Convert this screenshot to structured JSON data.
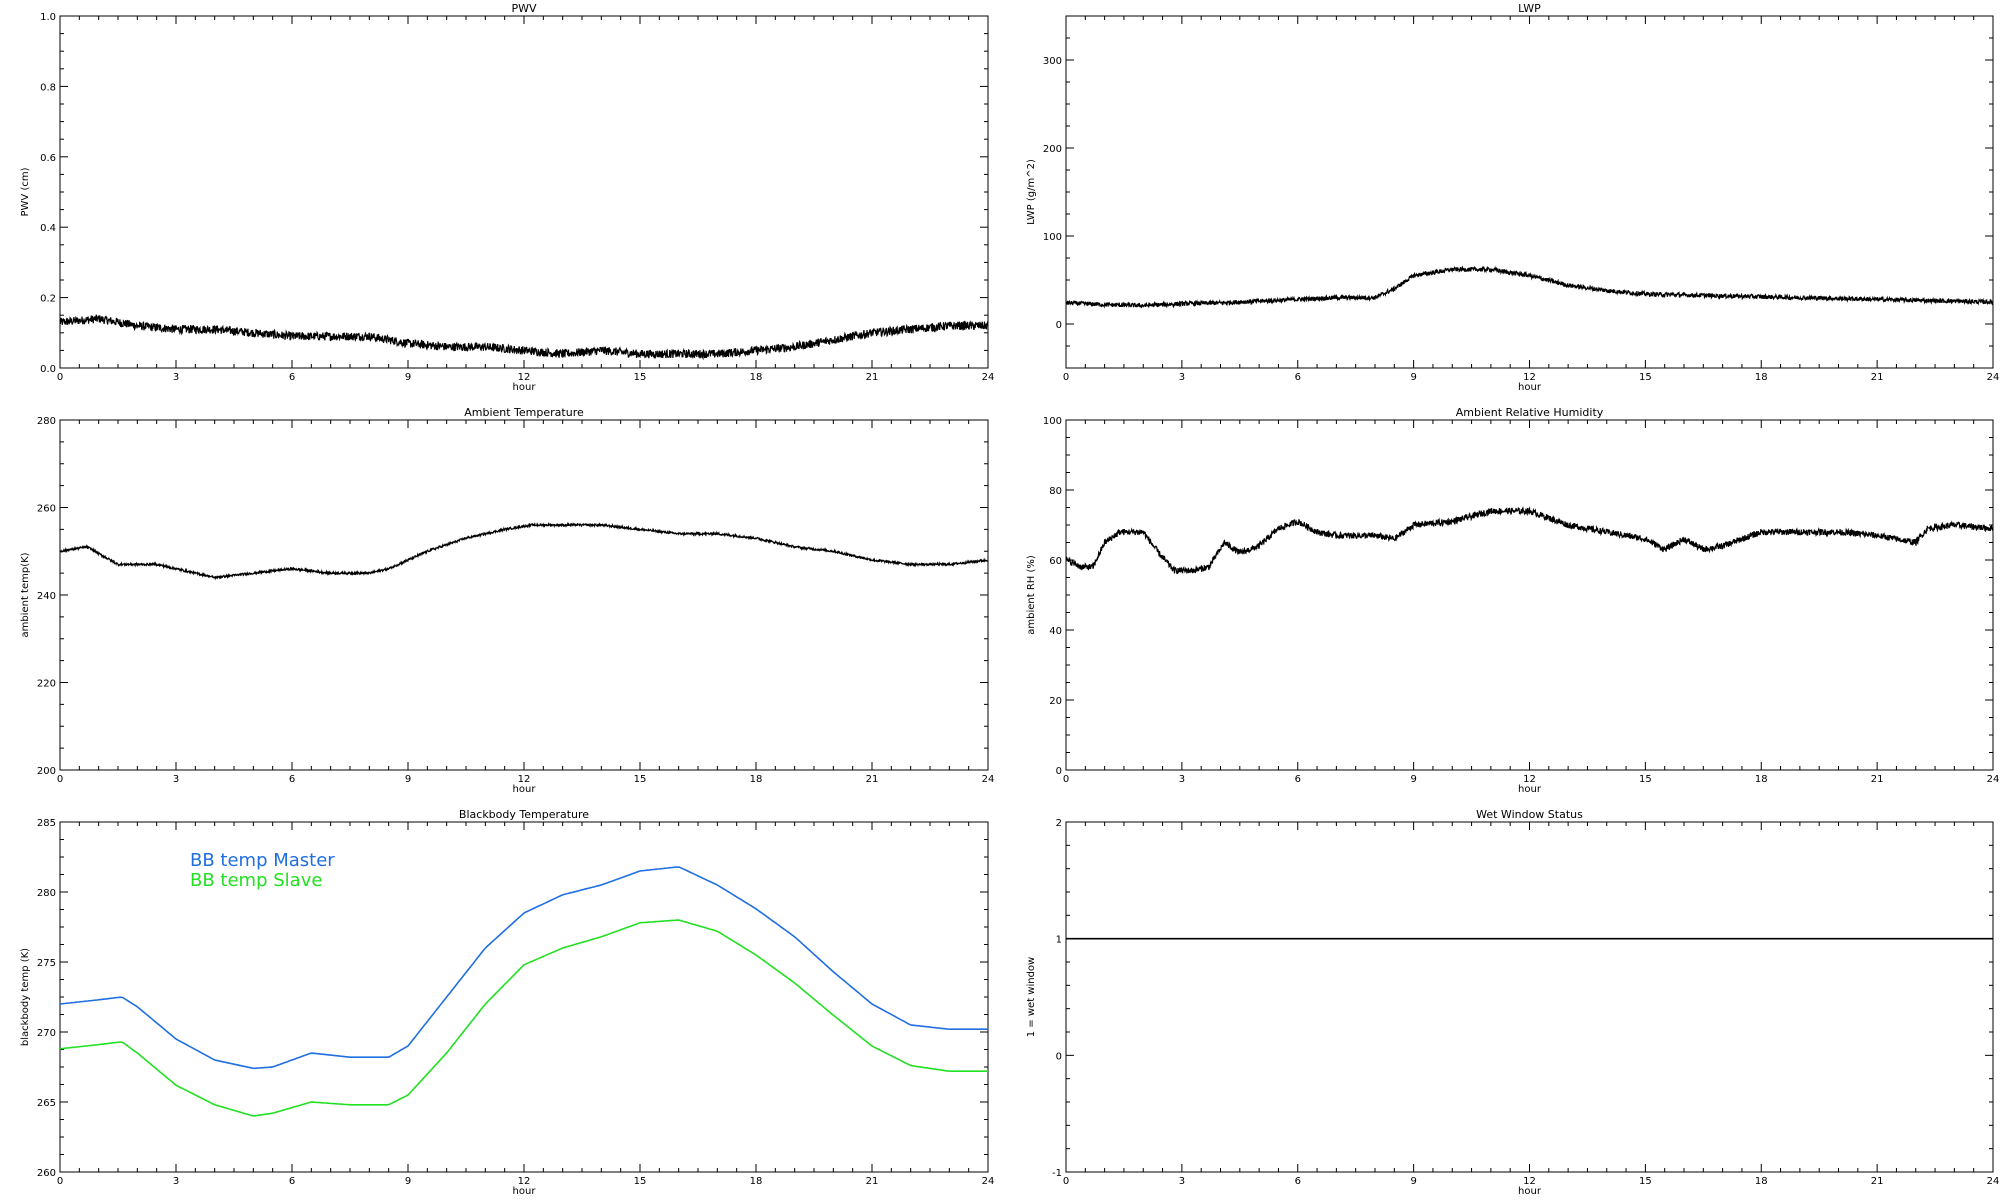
{
  "chart_data": [
    {
      "type": "line",
      "title": "PWV",
      "xlabel": "hour",
      "ylabel": "PWV (cm)",
      "xlim": [
        0,
        24
      ],
      "ylim": [
        0,
        1.0
      ],
      "xticks": [
        "0",
        "3",
        "6",
        "9",
        "12",
        "15",
        "18",
        "21",
        "24"
      ],
      "yticks": [
        "0.0",
        "0.2",
        "0.4",
        "0.6",
        "0.8",
        "1.0"
      ],
      "noise": 0.012,
      "series": [
        {
          "color": "#000000",
          "x": [
            0,
            1,
            2,
            3,
            4,
            5,
            6,
            7,
            8,
            9,
            10,
            11,
            12,
            13,
            14,
            15,
            16,
            17,
            18,
            19,
            20,
            21,
            22,
            23,
            24
          ],
          "y": [
            0.13,
            0.14,
            0.12,
            0.11,
            0.11,
            0.1,
            0.09,
            0.09,
            0.09,
            0.07,
            0.06,
            0.06,
            0.05,
            0.04,
            0.05,
            0.04,
            0.04,
            0.04,
            0.05,
            0.06,
            0.08,
            0.1,
            0.11,
            0.12,
            0.12
          ]
        }
      ]
    },
    {
      "type": "line",
      "title": "LWP",
      "xlabel": "hour",
      "ylabel": "LWP (g/m^2)",
      "xlim": [
        0,
        24
      ],
      "ylim": [
        -50,
        350
      ],
      "xticks": [
        "0",
        "3",
        "6",
        "9",
        "12",
        "15",
        "18",
        "21",
        "24"
      ],
      "yticks": [
        "0",
        "100",
        "200",
        "300"
      ],
      "noise": 2.5,
      "series": [
        {
          "color": "#000000",
          "x": [
            0,
            1,
            2,
            3,
            4,
            5,
            6,
            7,
            8,
            8.5,
            9,
            10,
            11,
            12,
            13,
            14,
            15,
            16,
            17,
            18,
            19,
            20,
            21,
            22,
            23,
            24
          ],
          "y": [
            24,
            22,
            21,
            23,
            24,
            26,
            28,
            30,
            30,
            40,
            55,
            62,
            62,
            55,
            44,
            38,
            34,
            33,
            32,
            31,
            30,
            29,
            28,
            27,
            26,
            25
          ]
        }
      ]
    },
    {
      "type": "line",
      "title": "Ambient Temperature",
      "xlabel": "hour",
      "ylabel": "ambient temp(K)",
      "xlim": [
        0,
        24
      ],
      "ylim": [
        200,
        280
      ],
      "xticks": [
        "0",
        "3",
        "6",
        "9",
        "12",
        "15",
        "18",
        "21",
        "24"
      ],
      "yticks": [
        "200",
        "220",
        "240",
        "260",
        "280"
      ],
      "noise": 0.25,
      "series": [
        {
          "color": "#000000",
          "x": [
            0,
            0.7,
            1.5,
            2.5,
            3.5,
            4,
            5,
            6,
            7,
            8,
            8.5,
            9.5,
            10.5,
            11.5,
            12.2,
            13,
            14,
            15,
            16,
            17,
            18,
            19,
            20,
            21,
            22,
            23,
            24
          ],
          "y": [
            250,
            251,
            247,
            247,
            245,
            244,
            245,
            246,
            245,
            245,
            246,
            250,
            253,
            255,
            256,
            256,
            256,
            255,
            254,
            254,
            253,
            251,
            250,
            248,
            247,
            247,
            248
          ]
        }
      ]
    },
    {
      "type": "line",
      "title": "Ambient Relative Humidity",
      "xlabel": "hour",
      "ylabel": "ambient RH (%)",
      "xlim": [
        0,
        24
      ],
      "ylim": [
        0,
        100
      ],
      "xticks": [
        "0",
        "3",
        "6",
        "9",
        "12",
        "15",
        "18",
        "21",
        "24"
      ],
      "yticks": [
        "0",
        "20",
        "40",
        "60",
        "80",
        "100"
      ],
      "noise": 0.9,
      "series": [
        {
          "color": "#000000",
          "x": [
            0,
            0.4,
            0.7,
            1,
            1.4,
            2,
            2.4,
            2.8,
            3.3,
            3.7,
            4.1,
            4.5,
            5,
            5.5,
            6,
            6.5,
            7,
            8,
            8.5,
            9,
            10,
            11,
            12,
            13,
            14,
            15,
            15.5,
            16,
            16.5,
            17,
            18,
            19,
            20,
            21,
            22,
            22.3,
            23,
            24
          ],
          "y": [
            60,
            58,
            58,
            65,
            68,
            68,
            62,
            57,
            57,
            58,
            65,
            62,
            64,
            69,
            71,
            68,
            67,
            67,
            66,
            70,
            71,
            74,
            74,
            70,
            68,
            66,
            63,
            66,
            63,
            64,
            68,
            68,
            68,
            67,
            65,
            69,
            70,
            69
          ]
        }
      ]
    },
    {
      "type": "line",
      "title": "Blackbody Temperature",
      "xlabel": "hour",
      "ylabel": "blackbody temp (K)",
      "xlim": [
        0,
        24
      ],
      "ylim": [
        260,
        285
      ],
      "xticks": [
        "0",
        "3",
        "6",
        "9",
        "12",
        "15",
        "18",
        "21",
        "24"
      ],
      "yticks": [
        "260",
        "265",
        "270",
        "275",
        "280",
        "285"
      ],
      "legend": "top-left",
      "noise": 0,
      "series": [
        {
          "name": "BB temp Master",
          "color": "#1f6fe0",
          "x": [
            0,
            1,
            1.6,
            2,
            3,
            4,
            5,
            5.5,
            6.5,
            7.5,
            8.5,
            9,
            10,
            11,
            12,
            13,
            14,
            15,
            16,
            17,
            18,
            19,
            20,
            21,
            22,
            23,
            24
          ],
          "y": [
            272,
            272.3,
            272.5,
            271.8,
            269.5,
            268,
            267.4,
            267.5,
            268.5,
            268.2,
            268.2,
            269,
            272.5,
            276,
            278.5,
            279.8,
            280.5,
            281.5,
            281.8,
            280.5,
            278.8,
            276.8,
            274.3,
            272,
            270.5,
            270.2,
            270.2
          ]
        },
        {
          "name": "BB temp Slave",
          "color": "#22e022",
          "x": [
            0,
            1,
            1.6,
            2,
            3,
            4,
            5,
            5.5,
            6.5,
            7.5,
            8.5,
            9,
            10,
            11,
            12,
            13,
            14,
            15,
            16,
            17,
            18,
            19,
            20,
            21,
            22,
            23,
            24
          ],
          "y": [
            268.8,
            269.1,
            269.3,
            268.5,
            266.2,
            264.8,
            264,
            264.2,
            265,
            264.8,
            264.8,
            265.5,
            268.5,
            272,
            274.8,
            276,
            276.8,
            277.8,
            278,
            277.2,
            275.5,
            273.5,
            271.2,
            269,
            267.6,
            267.2,
            267.2
          ]
        }
      ]
    },
    {
      "type": "line",
      "title": "Wet Window Status",
      "xlabel": "hour",
      "ylabel": "1 = wet window",
      "xlim": [
        0,
        24
      ],
      "ylim": [
        -1,
        2
      ],
      "xticks": [
        "0",
        "3",
        "6",
        "9",
        "12",
        "15",
        "18",
        "21",
        "24"
      ],
      "yticks": [
        "-1",
        "0",
        "1",
        "2"
      ],
      "noise": 0,
      "series": [
        {
          "color": "#000000",
          "x": [
            0,
            24
          ],
          "y": [
            1,
            1
          ]
        }
      ]
    }
  ]
}
